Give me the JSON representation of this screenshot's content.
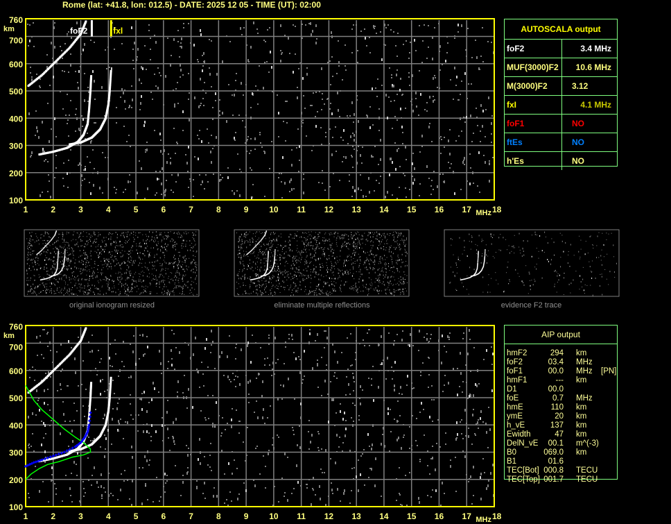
{
  "title": "Rome (lat: +41.8, lon: 012.5) - DATE: 2025 12 05 - TIME (UT): 02:00",
  "colors": {
    "axis": "#ffff00",
    "grid": "#808080",
    "label": "#ffff80",
    "table_border": "#80ff80",
    "trace": "#ffffff",
    "profile": "#00ff00",
    "aip_points": "#0000ff",
    "fxl": "#ffff00",
    "foF1": "#ff0000",
    "ftEs": "#0080ff",
    "fxl_value": "#c8c800"
  },
  "top_plot": {
    "foF2_label": "foF2",
    "fxl_label": "fxl"
  },
  "autoscala": {
    "title": "AUTOSCALA output",
    "rows": [
      {
        "label": "foF2",
        "value": "3.4 MHz",
        "color": "#ffffff",
        "value_color": "#ffffff"
      },
      {
        "label": "MUF(3000)F2",
        "value": "10.6 MHz",
        "color": "#ffff80",
        "value_color": "#ffff80"
      },
      {
        "label": "M(3000)F2",
        "value": "3.12",
        "color": "#ffff80",
        "value_color": "#ffff80"
      },
      {
        "label": "fxI",
        "value": "4.1 MHz",
        "color": "#ffff00",
        "value_color": "#c8c800"
      },
      {
        "label": "foF1",
        "value": "NO",
        "color": "#ff0000",
        "value_color": "#ff0000"
      },
      {
        "label": "ftEs",
        "value": "NO",
        "color": "#0080ff",
        "value_color": "#0080ff"
      },
      {
        "label": "h'Es",
        "value": "NO",
        "color": "#ffff80",
        "value_color": "#ffff80"
      }
    ]
  },
  "aip": {
    "title": "AIP output",
    "rows": [
      [
        "hmF2",
        "294",
        "km",
        ""
      ],
      [
        "foF2",
        "03.4",
        "MHz",
        ""
      ],
      [
        "foF1",
        "00.0",
        "MHz",
        "[PN]"
      ],
      [
        "hmF1",
        "---",
        "km",
        ""
      ],
      [
        "D1",
        "00.0",
        "",
        ""
      ],
      [
        "foE",
        "0.7",
        "MHz",
        ""
      ],
      [
        "hmE",
        "110",
        "km",
        ""
      ],
      [
        "ymE",
        "20",
        "km",
        ""
      ],
      [
        "h_vE",
        "137",
        "km",
        ""
      ],
      [
        "Ewidth",
        "47",
        "km",
        ""
      ],
      [
        "DelN_vE",
        "00.1",
        "m^(-3)",
        ""
      ],
      [
        "B0",
        "069.0",
        "km",
        ""
      ],
      [
        "B1",
        "01.6",
        "",
        ""
      ],
      [
        "TEC[Bot]",
        "000.8",
        "TECU",
        ""
      ],
      [
        "TEC[Top]",
        "001.7",
        "TECU",
        ""
      ]
    ]
  },
  "thumbnails": [
    {
      "caption": "original ionogram resized"
    },
    {
      "caption": "eliminate multiple reflections"
    },
    {
      "caption": "evidence F2 trace"
    }
  ],
  "chart_data": [
    {
      "type": "scatter",
      "title": "",
      "xlabel": "MHz",
      "ylabel": "km",
      "xlim": [
        1,
        18
      ],
      "ylim": [
        100,
        760
      ],
      "x_ticks": [
        "1",
        "2",
        "3",
        "4",
        "5",
        "6",
        "7",
        "8",
        "9",
        "10",
        "11",
        "12",
        "13",
        "14",
        "15",
        "16",
        "17",
        "18"
      ],
      "y_ticks": [
        "100",
        "200",
        "300",
        "400",
        "500",
        "600",
        "700",
        "760"
      ],
      "grid": true,
      "series": [
        {
          "name": "",
          "role": "O trace",
          "points": [
            [
              1.5,
              268
            ],
            [
              2.0,
              278
            ],
            [
              2.5,
              292
            ],
            [
              2.9,
              315
            ],
            [
              3.1,
              340
            ],
            [
              3.25,
              380
            ],
            [
              3.3,
              430
            ],
            [
              3.35,
              500
            ],
            [
              3.38,
              560
            ]
          ]
        },
        {
          "name": "",
          "role": "X trace",
          "points": [
            [
              2.6,
              305
            ],
            [
              3.0,
              312
            ],
            [
              3.4,
              330
            ],
            [
              3.7,
              360
            ],
            [
              3.9,
              400
            ],
            [
              4.0,
              450
            ],
            [
              4.05,
              500
            ],
            [
              4.1,
              580
            ]
          ]
        },
        {
          "name": "",
          "role": "second hop",
          "points": [
            [
              1.1,
              520
            ],
            [
              1.6,
              560
            ],
            [
              2.1,
              610
            ],
            [
              2.6,
              660
            ],
            [
              3.0,
              710
            ],
            [
              3.2,
              760
            ]
          ]
        }
      ],
      "markers": {
        "fxl_MHz": 4.1
      }
    },
    {
      "type": "line",
      "title": "",
      "xlabel": "MHz",
      "ylabel": "km",
      "xlim": [
        1,
        18
      ],
      "ylim": [
        100,
        760
      ],
      "x_ticks": [
        "1",
        "2",
        "3",
        "4",
        "5",
        "6",
        "7",
        "8",
        "9",
        "10",
        "11",
        "12",
        "13",
        "14",
        "15",
        "16",
        "17",
        "18"
      ],
      "y_ticks": [
        "100",
        "200",
        "300",
        "400",
        "500",
        "600",
        "700",
        "760"
      ],
      "grid": true,
      "series": [
        {
          "name": "",
          "role": "electron density profile",
          "points": [
            [
              1.0,
              545
            ],
            [
              1.3,
              490
            ],
            [
              1.6,
              455
            ],
            [
              2.0,
              420
            ],
            [
              2.4,
              385
            ],
            [
              2.8,
              355
            ],
            [
              3.1,
              335
            ],
            [
              3.35,
              312
            ],
            [
              3.35,
              300
            ],
            [
              3.1,
              290
            ],
            [
              2.7,
              282
            ],
            [
              2.2,
              265
            ],
            [
              1.8,
              255
            ],
            [
              1.5,
              240
            ],
            [
              1.2,
              220
            ],
            [
              1.0,
              200
            ]
          ]
        },
        {
          "name": "",
          "role": "AIP fitted trace",
          "points": [
            [
              1.0,
              248
            ],
            [
              1.3,
              262
            ],
            [
              1.6,
              272
            ],
            [
              2.0,
              286
            ],
            [
              2.4,
              300
            ],
            [
              2.8,
              320
            ],
            [
              3.0,
              335
            ],
            [
              3.15,
              355
            ],
            [
              3.25,
              375
            ],
            [
              3.3,
              400
            ],
            [
              3.37,
              460
            ]
          ]
        }
      ]
    }
  ]
}
